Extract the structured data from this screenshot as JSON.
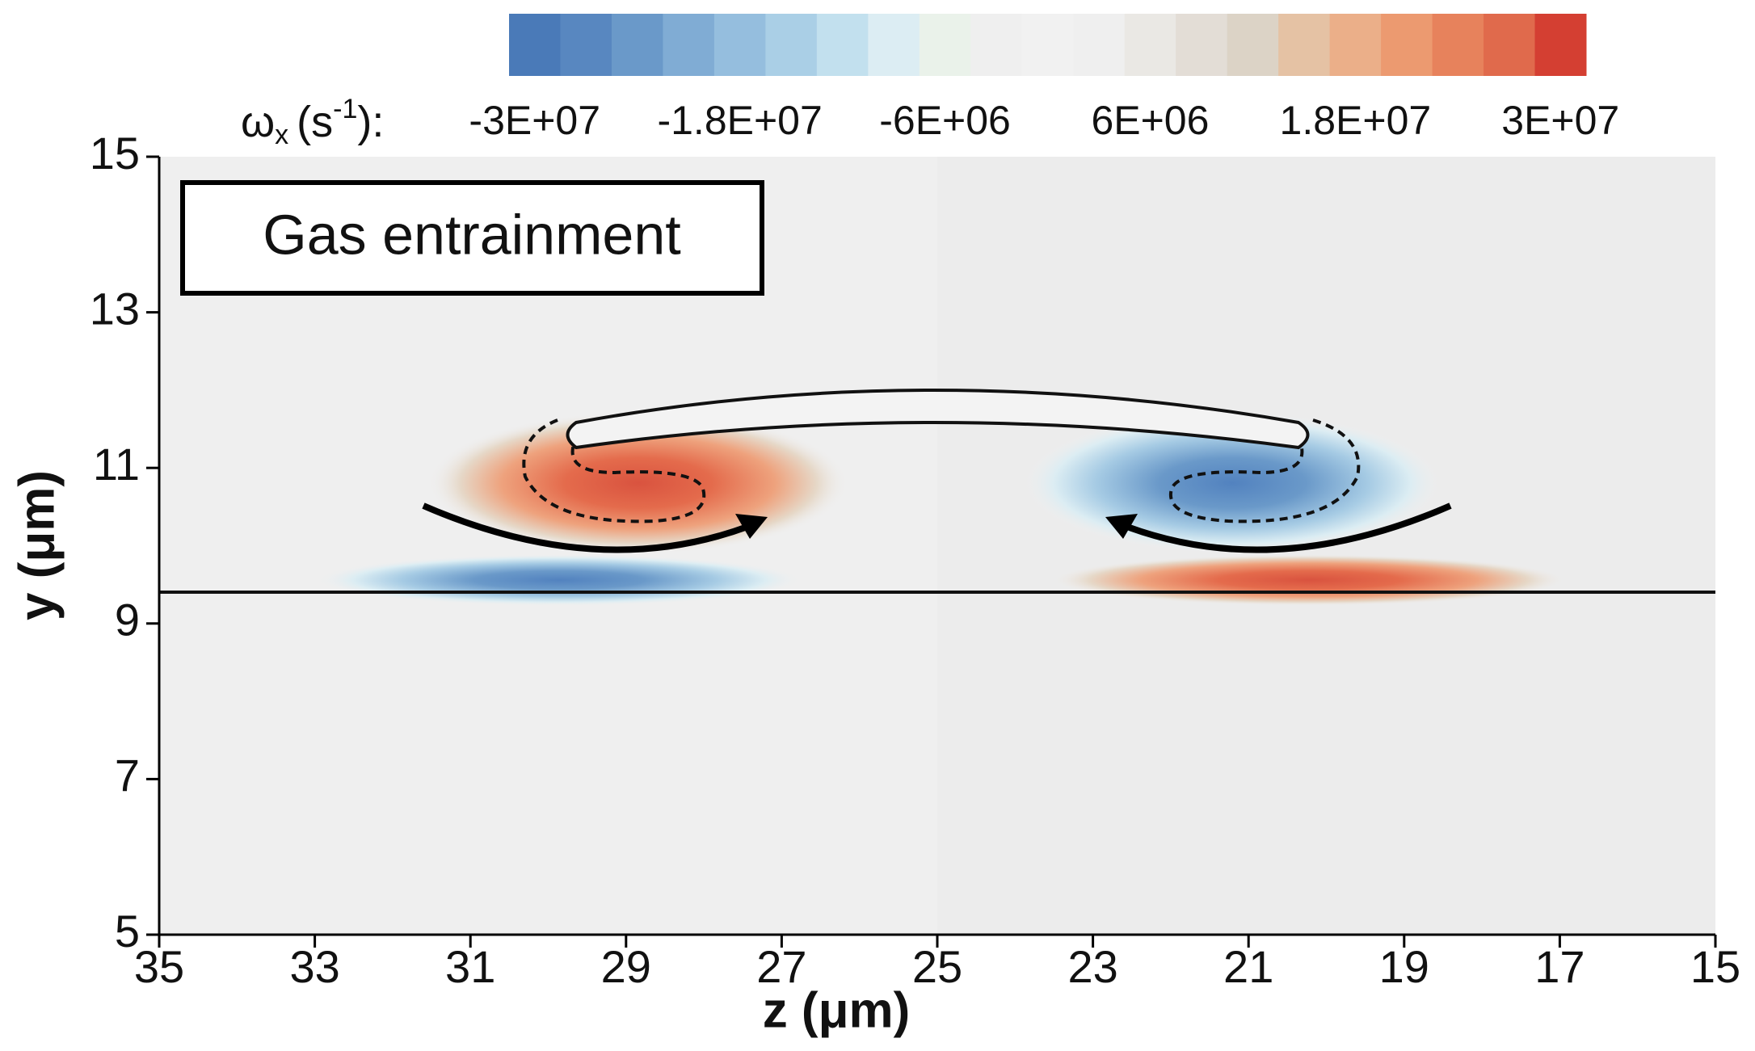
{
  "chart_data": {
    "type": "contour",
    "xlabel": "z (μm)",
    "ylabel": "y (μm)",
    "xlim": [
      35,
      15
    ],
    "ylim": [
      5,
      15
    ],
    "xticks": [
      35,
      33,
      31,
      29,
      27,
      25,
      23,
      21,
      19,
      17,
      15
    ],
    "yticks": [
      5,
      7,
      9,
      11,
      13,
      15
    ],
    "annotation": "Gas entrainment",
    "colorbar": {
      "label": {
        "symbol": "ω",
        "subscript": "x",
        "unit": "(s",
        "superscript": "-1",
        "suffix": "):"
      },
      "clim": [
        -31500000,
        31500000
      ],
      "ticks": [
        {
          "value": -30000000,
          "label": "-3E+07"
        },
        {
          "value": -18000000,
          "label": "-1.8E+07"
        },
        {
          "value": -6000000,
          "label": "-6E+06"
        },
        {
          "value": 6000000,
          "label": "6E+06"
        },
        {
          "value": 18000000,
          "label": "1.8E+07"
        },
        {
          "value": 30000000,
          "label": "3E+07"
        }
      ],
      "colors": [
        "#4a7ab8",
        "#5887c0",
        "#6a99c9",
        "#80acd4",
        "#95bede",
        "#aacfe6",
        "#c2e0ee",
        "#dcedf3",
        "#eaf2ea",
        "#efefef",
        "#f1f1f1",
        "#efefef",
        "#eae8e4",
        "#e3ddd6",
        "#dcd3c6",
        "#e5c2a4",
        "#ebaf89",
        "#ec9a70",
        "#e7825c",
        "#e06a4c",
        "#d43f32"
      ]
    }
  }
}
